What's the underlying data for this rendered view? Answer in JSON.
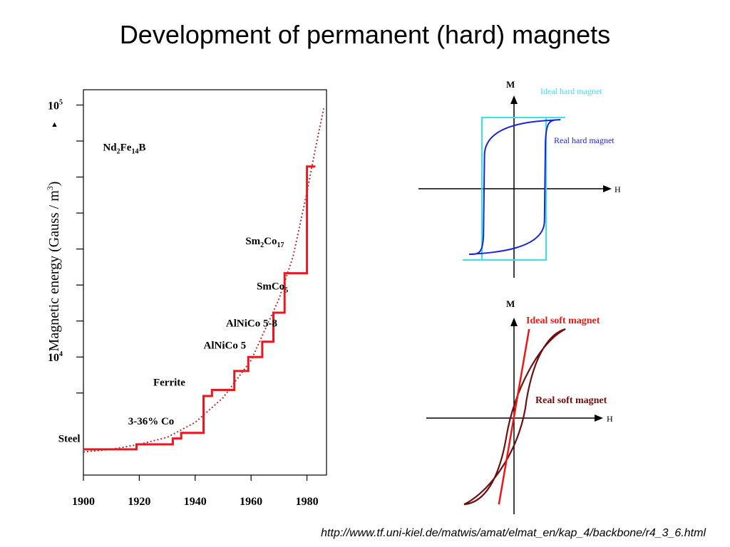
{
  "slide": {
    "title": "Development of permanent (hard) magnets",
    "source_url": "http://www.tf.uni-kiel.de/matwis/amat/elmat_en/kap_4/backbone/r4_3_6.html"
  },
  "chart_data": [
    {
      "type": "line",
      "title": "",
      "ylabel_main": "Magnetic energy (Gauss / m",
      "ylabel_sup": "3",
      "ylabel_close": ")",
      "xlabel": "",
      "xlim": [
        1900,
        1987
      ],
      "y_scale": "log",
      "ylim": [
        3400,
        115000
      ],
      "x_ticks": [
        "1900",
        "1920",
        "1940",
        "1960",
        "1980"
      ],
      "y_tick_labels": [
        {
          "base": "10",
          "exp": "4",
          "value": 10000
        },
        {
          "base": "10",
          "exp": "5",
          "value": 100000
        }
      ],
      "grid": false,
      "colors": {
        "step": "#e8191e",
        "trend": "#b03030",
        "axis": "#000000"
      },
      "series": [
        {
          "style": "step",
          "points": [
            [
              1900,
              4300
            ],
            [
              1919,
              4300
            ],
            [
              1919,
              4500
            ],
            [
              1932,
              4500
            ],
            [
              1932,
              4750
            ],
            [
              1935,
              4750
            ],
            [
              1935,
              5000
            ],
            [
              1943,
              5000
            ],
            [
              1943,
              7000
            ],
            [
              1946,
              7000
            ],
            [
              1946,
              7400
            ],
            [
              1954,
              7400
            ],
            [
              1954,
              8800
            ],
            [
              1959,
              8800
            ],
            [
              1959,
              10000
            ],
            [
              1964,
              10000
            ],
            [
              1964,
              11500
            ],
            [
              1968,
              11500
            ],
            [
              1968,
              15000
            ],
            [
              1972,
              15000
            ],
            [
              1972,
              21500
            ],
            [
              1980,
              21500
            ],
            [
              1980,
              57000
            ],
            [
              1983,
              57000
            ]
          ]
        },
        {
          "style": "dotted",
          "points": [
            [
              1900,
              4200
            ],
            [
              1910,
              4300
            ],
            [
              1920,
              4500
            ],
            [
              1930,
              4800
            ],
            [
              1940,
              5500
            ],
            [
              1950,
              6900
            ],
            [
              1960,
              9700
            ],
            [
              1970,
              17000
            ],
            [
              1975,
              25000
            ],
            [
              1980,
              45000
            ],
            [
              1983,
              67000
            ],
            [
              1986,
              97000
            ]
          ]
        }
      ],
      "annotations": [
        {
          "parts": [
            {
              "t": "Steel"
            }
          ],
          "x": 1891,
          "y": 4600
        },
        {
          "parts": [
            {
              "t": "3-36% Co"
            }
          ],
          "x": 1916,
          "y": 5400
        },
        {
          "parts": [
            {
              "t": "Ferrite"
            }
          ],
          "x": 1925,
          "y": 7700
        },
        {
          "parts": [
            {
              "t": "AlNiCo 5"
            }
          ],
          "x": 1943,
          "y": 10800
        },
        {
          "parts": [
            {
              "t": "AlNiCo 5-8"
            }
          ],
          "x": 1951,
          "y": 13200
        },
        {
          "parts": [
            {
              "t": "SmCo"
            },
            {
              "t": "5",
              "sub": true
            }
          ],
          "x": 1962,
          "y": 18500
        },
        {
          "parts": [
            {
              "t": "Sm"
            },
            {
              "t": "2",
              "sub": true
            },
            {
              "t": "Co"
            },
            {
              "t": "17",
              "sub": true
            }
          ],
          "x": 1958,
          "y": 28000
        },
        {
          "parts": [
            {
              "t": "Nd"
            },
            {
              "t": "2",
              "sub": true
            },
            {
              "t": "Fe"
            },
            {
              "t": "14",
              "sub": true
            },
            {
              "t": "B"
            }
          ],
          "x": 1907,
          "y": 66000
        }
      ]
    },
    {
      "type": "line",
      "panel": "hard",
      "title": "",
      "x_axis_label": "H",
      "y_axis_label": "M",
      "legend": {
        "ideal": "Ideal hard magnet",
        "real": "Real hard magnet"
      },
      "colors": {
        "ideal": "#33e3f0",
        "real": "#1a24d8",
        "axis": "#000000"
      },
      "ideal_loop": {
        "Hc": 1.0,
        "Ms": 1.0,
        "xlim": [
          -1.6,
          1.6
        ]
      },
      "real_loop": {
        "Hc": 0.95,
        "Ms": 0.95
      }
    },
    {
      "type": "line",
      "panel": "soft",
      "title": "",
      "x_axis_label": "H",
      "y_axis_label": "M",
      "legend": {
        "ideal": "Ideal soft magnet",
        "real": "Real soft magnet"
      },
      "colors": {
        "ideal": "#ee1515",
        "real": "#6e0f0f",
        "axis": "#000000"
      },
      "ideal_line": {
        "slope": 4.3
      },
      "real_loop": {
        "Hc": 0.1,
        "Ms": 1.0
      }
    }
  ]
}
